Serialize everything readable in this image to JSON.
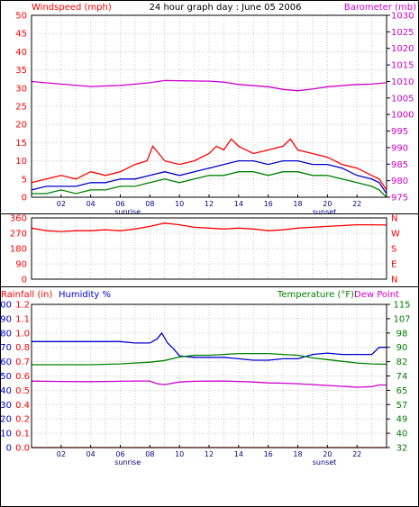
{
  "chart_data": [
    {
      "type": "line",
      "title": "24 hour graph day : June 05 2006",
      "left_axis_label": "Windspeed (mph)",
      "right_axis_label": "Barometer (mb)",
      "left_ylim": [
        0,
        50
      ],
      "left_ticks": [
        0,
        5,
        10,
        15,
        20,
        25,
        30,
        35,
        40,
        45,
        50
      ],
      "right_ylim": [
        975,
        1030
      ],
      "right_ticks": [
        975,
        980,
        985,
        990,
        995,
        1000,
        1005,
        1010,
        1015,
        1020,
        1025,
        1030
      ],
      "x_ticks": [
        "02",
        "04",
        "06",
        "08",
        "10",
        "12",
        "14",
        "16",
        "18",
        "20",
        "22"
      ],
      "x_range": [
        0,
        24
      ],
      "event_labels": [
        {
          "text": "sunrise",
          "hour": 6.5
        },
        {
          "text": "sunset",
          "hour": 19.8
        }
      ],
      "grid": true,
      "colors": {
        "gust": "#ff0000",
        "average": "#0000cc",
        "minimum": "#008000",
        "barometer": "#cc00cc",
        "left_axis": "#ff0000",
        "right_axis": "#cc00cc"
      },
      "series": [
        {
          "key": "gust",
          "axis": "left",
          "x": [
            0,
            1,
            2,
            3,
            4,
            5,
            6,
            7,
            7.8,
            8.2,
            9,
            10,
            11,
            12,
            12.5,
            13,
            13.5,
            14,
            15,
            16,
            17,
            17.5,
            18,
            19,
            20,
            21,
            22,
            23,
            23.5,
            24
          ],
          "values": [
            4,
            5,
            6,
            5,
            7,
            6,
            7,
            9,
            10,
            14,
            10,
            9,
            10,
            12,
            14,
            13,
            16,
            14,
            12,
            13,
            14,
            16,
            13,
            12,
            11,
            9,
            8,
            6,
            5,
            2
          ]
        },
        {
          "key": "average",
          "axis": "left",
          "x": [
            0,
            1,
            2,
            3,
            4,
            5,
            6,
            7,
            8,
            9,
            10,
            11,
            12,
            13,
            14,
            15,
            16,
            17,
            18,
            19,
            20,
            21,
            22,
            23,
            23.5,
            24
          ],
          "values": [
            2,
            3,
            3,
            3,
            4,
            4,
            5,
            5,
            6,
            7,
            6,
            7,
            8,
            9,
            10,
            10,
            9,
            10,
            10,
            9,
            9,
            8,
            6,
            5,
            4,
            1
          ]
        },
        {
          "key": "minimum",
          "axis": "left",
          "x": [
            0,
            1,
            2,
            3,
            4,
            5,
            6,
            7,
            8,
            9,
            10,
            11,
            12,
            13,
            14,
            15,
            16,
            17,
            18,
            19,
            20,
            21,
            22,
            23,
            23.5,
            24
          ],
          "values": [
            1,
            1,
            2,
            1,
            2,
            2,
            3,
            3,
            4,
            5,
            4,
            5,
            6,
            6,
            7,
            7,
            6,
            7,
            7,
            6,
            6,
            5,
            4,
            3,
            2,
            0
          ]
        },
        {
          "key": "barometer",
          "axis": "right",
          "x": [
            0,
            2,
            4,
            6,
            8,
            9,
            10,
            12,
            13,
            14,
            16,
            17,
            18,
            19,
            20,
            22,
            23,
            24
          ],
          "values": [
            1010,
            1009.2,
            1008.5,
            1008.8,
            1009.6,
            1010.3,
            1010.2,
            1010.1,
            1009.8,
            1009.1,
            1008.4,
            1007.6,
            1007.2,
            1007.7,
            1008.4,
            1009.1,
            1009.2,
            1009.6
          ]
        }
      ]
    },
    {
      "type": "line",
      "left_ylim": [
        0,
        360
      ],
      "left_ticks": [
        0,
        90,
        180,
        270,
        360
      ],
      "right_labels": [
        "N",
        "W",
        "S",
        "E",
        "N"
      ],
      "x_range": [
        0,
        24
      ],
      "grid": true,
      "colors": {
        "direction": "#ff0000",
        "left_axis": "#ff0000",
        "right_axis": "#ff0000"
      },
      "series": [
        {
          "key": "direction",
          "x": [
            0,
            1,
            2,
            3,
            4,
            5,
            6,
            7,
            8,
            9,
            10,
            11,
            12,
            13,
            14,
            15,
            16,
            17,
            18,
            19,
            20,
            21,
            22,
            23,
            24
          ],
          "values": [
            300,
            285,
            280,
            285,
            285,
            290,
            285,
            295,
            310,
            330,
            320,
            305,
            300,
            295,
            300,
            295,
            285,
            290,
            300,
            305,
            310,
            315,
            320,
            320,
            318
          ]
        }
      ]
    },
    {
      "type": "line",
      "rainfall_label": "Rainfall (in)",
      "humidity_label": "Humidity %",
      "temperature_label": "Temperature (°F)",
      "dewpoint_label": "Dew Point",
      "humidity_ticks": [
        0,
        10,
        20,
        30,
        40,
        50,
        60,
        70,
        80,
        90,
        100
      ],
      "humidity_ylim": [
        0,
        100
      ],
      "rainfall_ticks": [
        "0.0",
        "0.1",
        "0.2",
        "0.4",
        "0.5",
        "0.6",
        "0.7",
        "0.8",
        "1.0",
        "1.1",
        "1.2"
      ],
      "temperature_ticks": [
        32,
        40,
        49,
        57,
        65,
        74,
        82,
        90,
        98,
        107,
        115
      ],
      "temperature_ylim": [
        32,
        115
      ],
      "x_ticks": [
        "02",
        "04",
        "06",
        "08",
        "10",
        "12",
        "14",
        "16",
        "18",
        "20",
        "22"
      ],
      "x_range": [
        0,
        24
      ],
      "event_labels": [
        {
          "text": "sunrise",
          "hour": 6.5
        },
        {
          "text": "sunset",
          "hour": 19.8
        }
      ],
      "grid": true,
      "colors": {
        "rainfall": "#ff0000",
        "humidity": "#0000cc",
        "temperature": "#008000",
        "dewpoint": "#cc00cc"
      },
      "series": [
        {
          "key": "humidity",
          "axis": "humidity",
          "x": [
            0,
            2,
            4,
            6,
            7,
            8,
            8.5,
            8.8,
            9.2,
            9.6,
            10,
            11,
            12,
            13,
            14,
            15,
            16,
            17,
            18,
            19,
            20,
            21,
            22,
            23,
            23.5,
            24
          ],
          "values": [
            74,
            74,
            74,
            74,
            73,
            73,
            76,
            80,
            73,
            69,
            64,
            63,
            63,
            63,
            62,
            61,
            61,
            62,
            62,
            65,
            66,
            65,
            65,
            65,
            70,
            70
          ]
        },
        {
          "key": "temperature",
          "axis": "temperature",
          "x": [
            0,
            2,
            4,
            6,
            7,
            8,
            9,
            10,
            11,
            12,
            13,
            14,
            15,
            16,
            17,
            18,
            19,
            20,
            21,
            22,
            23,
            24
          ],
          "values": [
            80,
            80,
            80,
            80.5,
            81,
            81.5,
            82.5,
            84.5,
            85.5,
            85.5,
            86,
            86.5,
            86.5,
            86.5,
            86,
            85.5,
            84,
            83,
            82,
            81,
            80.5,
            80.3
          ]
        },
        {
          "key": "dewpoint",
          "axis": "temperature",
          "x": [
            0,
            2,
            4,
            6,
            7,
            8,
            8.5,
            9,
            10,
            11,
            12,
            13,
            14,
            15,
            16,
            17,
            18,
            19,
            20,
            21,
            22,
            23,
            23.5,
            24
          ],
          "values": [
            70.5,
            70.3,
            70.2,
            70.4,
            70.6,
            70.6,
            69,
            68.5,
            70,
            70.4,
            70.5,
            70.5,
            70.3,
            70,
            69.5,
            69.3,
            69,
            68.5,
            68,
            67.5,
            67,
            67.3,
            68.3,
            68.3
          ]
        },
        {
          "key": "rainfall",
          "axis": "humidity",
          "x": [
            0,
            24
          ],
          "values": [
            0,
            0
          ]
        }
      ]
    }
  ]
}
